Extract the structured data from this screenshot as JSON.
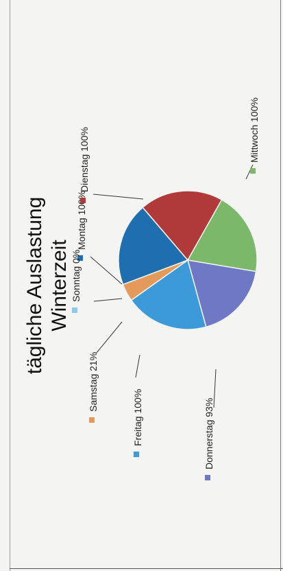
{
  "chart_data": {
    "type": "pie",
    "title_line1": "tägliche Auslastung",
    "title_line2": "Winterzeit",
    "categories": [
      "Montag",
      "Dienstag",
      "Mittwoch",
      "Donnerstag",
      "Freitag",
      "Samstag",
      "Sonntag"
    ],
    "values": [
      100,
      100,
      100,
      93,
      100,
      21,
      0
    ],
    "labels": [
      "Montag 100%",
      "Dienstag 100%",
      "Mittwoch 100%",
      "Donnerstag 93%",
      "Freitag 100%",
      "Samstag 21%",
      "Sonntag 0%"
    ],
    "colors": [
      "#1f6fb0",
      "#b03a3a",
      "#7cb86a",
      "#6f78c4",
      "#3d9ad8",
      "#e39a5a",
      "#8fc7e8"
    ],
    "legend": "none"
  }
}
